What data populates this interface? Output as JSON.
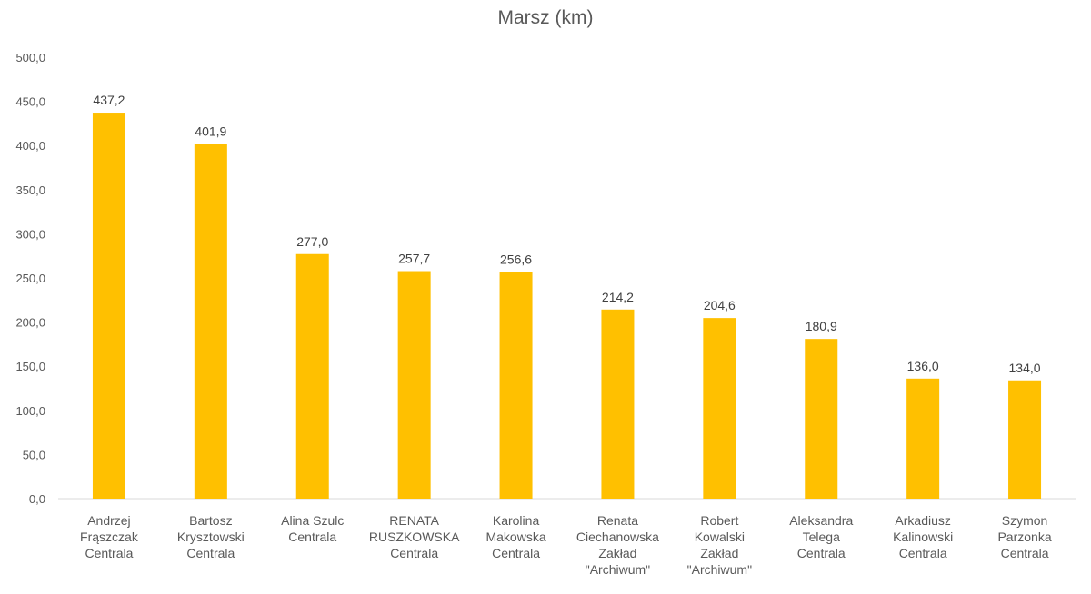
{
  "chart_data": {
    "type": "bar",
    "title": "Marsz (km)",
    "xlabel": "",
    "ylabel": "",
    "ylim": [
      0,
      500
    ],
    "ytick_step": 50,
    "ytick_labels": [
      "0,0",
      "50,0",
      "100,0",
      "150,0",
      "200,0",
      "250,0",
      "300,0",
      "350,0",
      "400,0",
      "450,0",
      "500,0"
    ],
    "grid": false,
    "legend": "none",
    "bar_color": "#FFC000",
    "categories": [
      [
        "Andrzej",
        "Frąszczak",
        "Centrala"
      ],
      [
        "Bartosz",
        "Krysztowski",
        "Centrala"
      ],
      [
        "Alina Szulc",
        "Centrala"
      ],
      [
        "RENATA",
        "RUSZKOWSKA",
        "Centrala"
      ],
      [
        "Karolina",
        "Makowska",
        "Centrala"
      ],
      [
        "Renata",
        "Ciechanowska",
        "Zakład",
        "\"Archiwum\""
      ],
      [
        "Robert",
        "Kowalski",
        "Zakład",
        "\"Archiwum\""
      ],
      [
        "Aleksandra",
        "Telega",
        "Centrala"
      ],
      [
        "Arkadiusz",
        "Kalinowski",
        "Centrala"
      ],
      [
        "Szymon",
        "Parzonka",
        "Centrala"
      ]
    ],
    "values": [
      437.2,
      401.9,
      277.0,
      257.7,
      256.6,
      214.2,
      204.6,
      180.9,
      136.0,
      134.0
    ],
    "value_labels": [
      "437,2",
      "401,9",
      "277,0",
      "257,7",
      "256,6",
      "214,2",
      "204,6",
      "180,9",
      "136,0",
      "134,0"
    ]
  }
}
